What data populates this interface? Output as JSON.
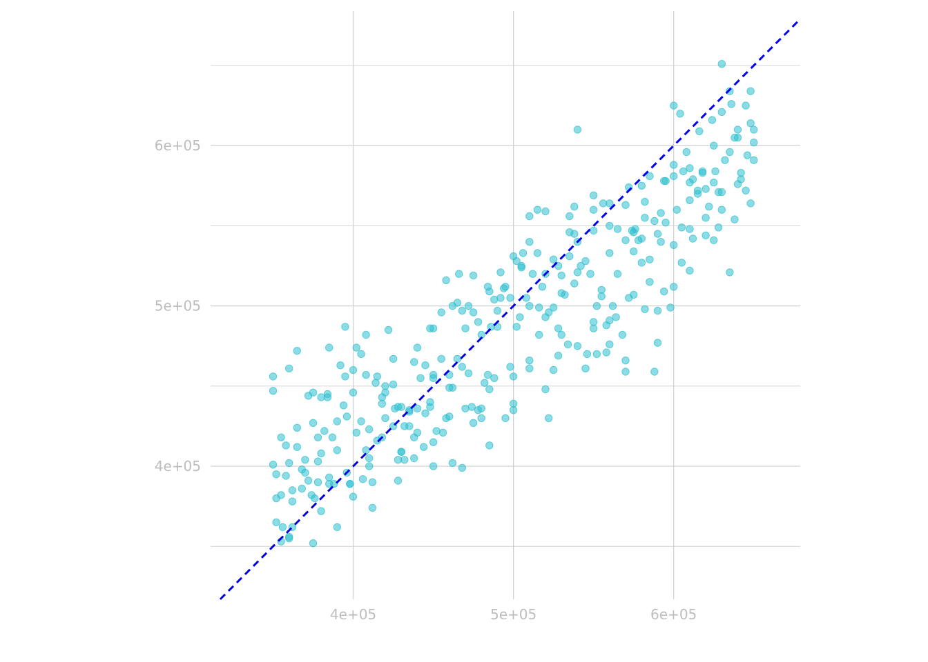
{
  "chart_data": {
    "type": "scatter",
    "title": "",
    "xlabel": "",
    "ylabel": "",
    "xlim": [
      311000,
      679000
    ],
    "ylim": [
      317000,
      684000
    ],
    "x_ticks": [
      {
        "value": 400000,
        "label": "4e+05"
      },
      {
        "value": 500000,
        "label": "5e+05"
      },
      {
        "value": 600000,
        "label": "6e+05"
      }
    ],
    "y_ticks": [
      {
        "value": 400000,
        "label": "4e+05"
      },
      {
        "value": 500000,
        "label": "5e+05"
      },
      {
        "value": 600000,
        "label": "6e+05"
      }
    ],
    "minor_y_gridlines": [
      350000,
      450000,
      550000,
      650000
    ],
    "grid": true,
    "point_color": "#2ebfcf",
    "reference_line": {
      "style": "dashed",
      "color": "#0000ee",
      "slope": 1,
      "intercept": 0
    },
    "series": [
      {
        "x": [
          350000,
          352000,
          355000,
          358000,
          360000,
          362000,
          350000,
          352000,
          355000,
          360000,
          362000,
          365000,
          368000,
          370000,
          372000,
          375000,
          378000,
          380000,
          380000,
          382000,
          385000,
          387000,
          390000,
          392000,
          395000,
          398000,
          400000,
          402000,
          405000,
          408000,
          410000,
          412000,
          415000,
          418000,
          420000,
          422000,
          425000,
          428000,
          430000,
          432000,
          435000,
          438000,
          440000,
          442000,
          445000,
          448000,
          450000,
          452000,
          455000,
          458000,
          460000,
          462000,
          465000,
          468000,
          470000,
          472000,
          475000,
          478000,
          480000,
          482000,
          485000,
          488000,
          490000,
          492000,
          495000,
          498000,
          500000,
          502000,
          505000,
          508000,
          510000,
          512000,
          515000,
          518000,
          520000,
          522000,
          525000,
          528000,
          530000,
          532000,
          535000,
          538000,
          540000,
          542000,
          545000,
          548000,
          550000,
          552000,
          555000,
          558000,
          560000,
          562000,
          565000,
          568000,
          570000,
          572000,
          575000,
          578000,
          580000,
          582000,
          585000,
          588000,
          590000,
          592000,
          595000,
          598000,
          600000,
          602000,
          605000,
          608000,
          610000,
          612000,
          615000,
          618000,
          620000,
          622000,
          625000,
          628000,
          630000,
          632000,
          635000,
          638000,
          640000,
          642000,
          645000,
          648000,
          650000,
          360000,
          365000,
          372000,
          378000,
          384000,
          390000,
          396000,
          402000,
          408000,
          414000,
          420000,
          426000,
          432000,
          438000,
          444000,
          450000,
          456000,
          462000,
          468000,
          474000,
          480000,
          486000,
          492000,
          498000,
          504000,
          510000,
          516000,
          522000,
          528000,
          534000,
          540000,
          546000,
          552000,
          558000,
          564000,
          570000,
          576000,
          582000,
          588000,
          594000,
          600000,
          606000,
          612000,
          618000,
          624000,
          630000,
          636000,
          642000,
          648000,
          355000,
          365000,
          375000,
          385000,
          395000,
          405000,
          415000,
          425000,
          435000,
          445000,
          455000,
          465000,
          475000,
          485000,
          495000,
          505000,
          515000,
          525000,
          535000,
          545000,
          555000,
          565000,
          575000,
          585000,
          595000,
          605000,
          615000,
          625000,
          635000,
          645000,
          358000,
          368000,
          378000,
          388000,
          398000,
          408000,
          418000,
          428000,
          438000,
          448000,
          458000,
          468000,
          478000,
          488000,
          500000,
          510000,
          520000,
          530000,
          540000,
          550000,
          560000,
          570000,
          580000,
          590000,
          600000,
          610000,
          620000,
          630000,
          640000,
          650000,
          352000,
          374000,
          396000,
          418000,
          440000,
          462000,
          484000,
          506000,
          528000,
          550000,
          572000,
          594000,
          616000,
          638000,
          362000,
          384000,
          406000,
          428000,
          450000,
          472000,
          494000,
          516000,
          538000,
          560000,
          582000,
          604000,
          626000,
          648000,
          356000,
          376000,
          394000,
          412000,
          430000,
          448000,
          466000,
          484000,
          502000,
          520000,
          538000,
          556000,
          574000,
          592000,
          610000,
          628000,
          646000,
          370000,
          390000,
          410000,
          430000,
          450000,
          470000,
          490000,
          510000,
          530000,
          550000,
          570000,
          590000,
          610000,
          630000,
          380000,
          400000,
          420000,
          440000,
          460000,
          480000,
          500000,
          520000,
          540000,
          560000,
          580000,
          600000,
          620000,
          640000,
          350000,
          375000,
          400000,
          425000,
          450000,
          475000,
          500000,
          525000,
          550000,
          575000,
          600000,
          625000,
          650000,
          360000,
          385000,
          410000,
          435000,
          460000,
          485000,
          510000,
          535000,
          560000,
          585000,
          610000,
          635000
        ],
        "y": [
          456000,
          395000,
          382000,
          413000,
          402000,
          378000,
          447000,
          365000,
          418000,
          356000,
          362000,
          412000,
          398000,
          404000,
          444000,
          352000,
          390000,
          408000,
          443000,
          422000,
          393000,
          418000,
          410000,
          463000,
          456000,
          389000,
          446000,
          421000,
          428000,
          457000,
          400000,
          390000,
          416000,
          439000,
          430000,
          485000,
          425000,
          391000,
          437000,
          404000,
          425000,
          405000,
          436000,
          455000,
          463000,
          486000,
          400000,
          422000,
          496000,
          430000,
          457000,
          500000,
          502000,
          462000,
          436000,
          458000,
          427000,
          490000,
          436000,
          452000,
          413000,
          455000,
          487000,
          521000,
          430000,
          462000,
          439000,
          487000,
          524000,
          505000,
          540000,
          520000,
          560000,
          512000,
          448000,
          496000,
          460000,
          486000,
          519000,
          507000,
          531000,
          514000,
          540000,
          525000,
          528000,
          520000,
          486000,
          470000,
          506000,
          488000,
          476000,
          500000,
          520000,
          482000,
          466000,
          505000,
          507000,
          541000,
          527000,
          555000,
          515000,
          553000,
          497000,
          540000,
          552000,
          499000,
          538000,
          560000,
          549000,
          596000,
          586000,
          542000,
          572000,
          584000,
          544000,
          562000,
          577000,
          571000,
          560000,
          591000,
          596000,
          554000,
          576000,
          583000,
          572000,
          564000,
          610000,
          461000,
          472000,
          391000,
          418000,
          443000,
          428000,
          396000,
          474000,
          482000,
          452000,
          446000,
          436000,
          425000,
          418000,
          412000,
          415000,
          421000,
          402000,
          399000,
          437000,
          430000,
          487000,
          505000,
          505000,
          493000,
          556000,
          482000,
          430000,
          469000,
          476000,
          475000,
          470000,
          500000,
          471000,
          493000,
          459000,
          548000,
          498000,
          459000,
          509000,
          512000,
          584000,
          579000,
          583000,
          616000,
          621000,
          626000,
          579000,
          634000,
          353000,
          424000,
          427000,
          474000,
          487000,
          470000,
          456000,
          451000,
          434000,
          433000,
          467000,
          467000,
          519000,
          509000,
          512000,
          525000,
          533000,
          499000,
          556000,
          461000,
          510000,
          548000,
          534000,
          529000,
          578000,
          527000,
          570000,
          541000,
          521000,
          625000,
          394000,
          386000,
          403000,
          389000,
          389000,
          410000,
          443000,
          404000,
          465000,
          437000,
          516000,
          497000,
          435000,
          504000,
          435000,
          461000,
          493000,
          482000,
          521000,
          490000,
          491000,
          563000,
          575000,
          477000,
          625000,
          566000,
          573000,
          651000,
          610000,
          602000,
          380000,
          382000,
          431000,
          418000,
          474000,
          449000,
          457000,
          533000,
          525000,
          560000,
          574000,
          578000,
          609000,
          605000,
          385000,
          445000,
          392000,
          437000,
          486000,
          500000,
          511000,
          499000,
          562000,
          550000,
          565000,
          620000,
          584000,
          614000,
          362000,
          380000,
          438000,
          374000,
          409000,
          440000,
          520000,
          512000,
          528000,
          559000,
          545000,
          564000,
          547000,
          558000,
          548000,
          549000,
          594000,
          396000,
          362000,
          423000,
          409000,
          457000,
          486000,
          497000,
          500000,
          508000,
          569000,
          541000,
          545000,
          522000,
          571000,
          372000,
          381000,
          450000,
          421000,
          431000,
          482000,
          531000,
          520000,
          610000,
          564000,
          542000,
          588000,
          555000,
          605000,
          401000,
          446000,
          460000,
          467000,
          455000,
          496000,
          456000,
          529000,
          547000,
          546000,
          581000,
          600000,
          591000,
          355000,
          389000,
          405000,
          435000,
          449000,
          448000,
          466000,
          546000,
          533000,
          581000,
          577000,
          634000
        ]
      }
    ]
  }
}
